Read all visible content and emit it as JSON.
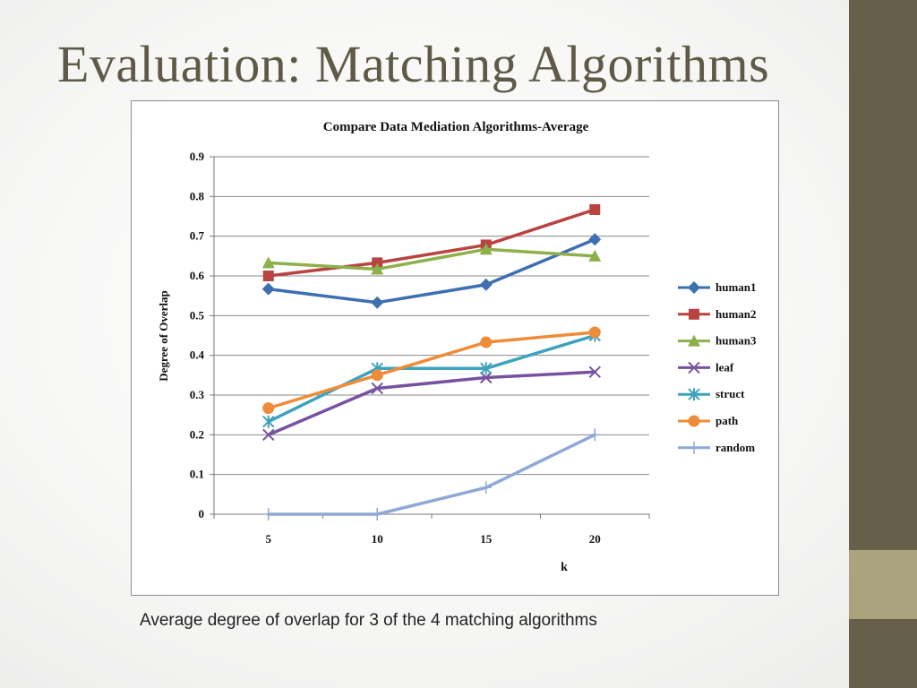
{
  "slide": {
    "title": "Evaluation: Matching Algorithms",
    "caption": "Average degree of overlap for 3 of the 4 matching algorithms"
  },
  "theme": {
    "sidebar_color": "#665f4a",
    "sidebar_accent_color": "#aaa37d",
    "title_color": "#5e5a46"
  },
  "chart_data": {
    "type": "line",
    "title": "Compare Data Mediation Algorithms-Average",
    "xlabel": "k",
    "ylabel": "Degree of Overlap",
    "categories": [
      "5",
      "10",
      "15",
      "20"
    ],
    "ylim": [
      0,
      0.9
    ],
    "yticks": [
      "0",
      "0.1",
      "0.2",
      "0.3",
      "0.4",
      "0.5",
      "0.6",
      "0.7",
      "0.8",
      "0.9"
    ],
    "grid": "horizontal",
    "legend_position": "right",
    "series": [
      {
        "name": "human1",
        "color": "#3e6fb0",
        "marker": "diamond",
        "values": [
          0.567,
          0.533,
          0.578,
          0.692
        ]
      },
      {
        "name": "human2",
        "color": "#b84340",
        "marker": "square",
        "values": [
          0.6,
          0.633,
          0.678,
          0.767
        ]
      },
      {
        "name": "human3",
        "color": "#8db04b",
        "marker": "triangle",
        "values": [
          0.633,
          0.617,
          0.667,
          0.65
        ]
      },
      {
        "name": "leaf",
        "color": "#7752a0",
        "marker": "x",
        "values": [
          0.2,
          0.317,
          0.344,
          0.358
        ]
      },
      {
        "name": "struct",
        "color": "#3ea2bc",
        "marker": "star",
        "values": [
          0.233,
          0.367,
          0.367,
          0.45
        ]
      },
      {
        "name": "path",
        "color": "#ee8c3a",
        "marker": "circle",
        "values": [
          0.267,
          0.35,
          0.433,
          0.458
        ]
      },
      {
        "name": "random",
        "color": "#8fa9d4",
        "marker": "plus",
        "values": [
          0.0,
          0.0,
          0.067,
          0.2
        ]
      }
    ]
  }
}
